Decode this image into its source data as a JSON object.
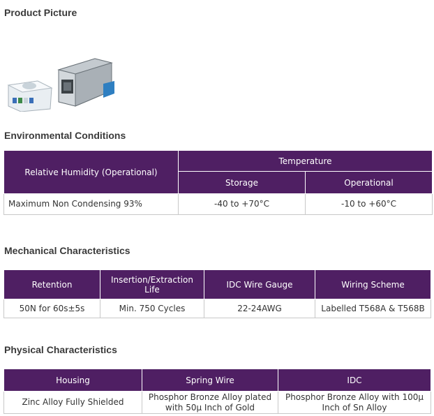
{
  "sections": {
    "product_picture": "Product Picture",
    "environmental": "Environmental Conditions",
    "mechanical": "Mechanical Characteristics",
    "physical": "Physical Characteristics"
  },
  "environmental_table": {
    "humidity_header": "Relative Humidity (Operational)",
    "temperature_header": "Temperature",
    "storage_header": "Storage",
    "operational_header": "Operational",
    "row": {
      "humidity": "Maximum Non Condensing 93%",
      "storage": "-40 to +70°C",
      "operational": "-10 to +60°C"
    }
  },
  "mechanical_table": {
    "headers": [
      "Retention",
      "Insertion/Extraction Life",
      "IDC Wire Gauge",
      "Wiring Scheme"
    ],
    "row": [
      "50N for 60s±5s",
      "Min. 750 Cycles",
      "22-24AWG",
      "Labelled T568A & T568B"
    ]
  },
  "physical_table": {
    "headers": [
      "Housing",
      "Spring Wire",
      "IDC"
    ],
    "row": [
      "Zinc Alloy Fully Shielded",
      "Phosphor Bronze Alloy plated with 50µ Inch of Gold",
      "Phosphor Bronze Alloy with 100µ Inch of Sn Alloy"
    ]
  },
  "colors": {
    "header_bg": "#4f1f63",
    "border": "#c8c8c8"
  }
}
